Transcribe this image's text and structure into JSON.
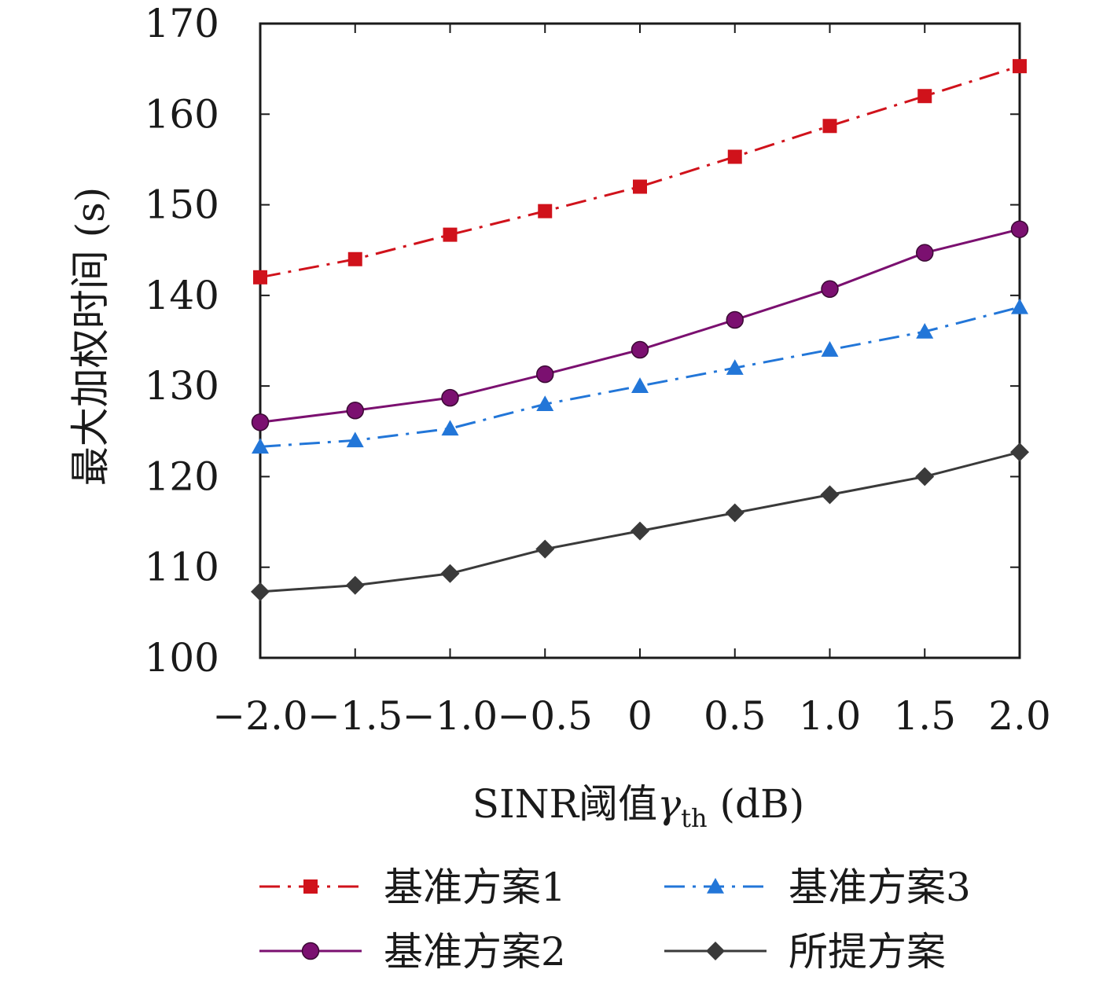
{
  "chart_data": {
    "type": "line",
    "xlabel_prefix": "SINR阈值",
    "xlabel_symbol": "γ",
    "xlabel_subscript": "th",
    "xlabel_unit": " (dB)",
    "ylabel": "最大加权时间 (s)",
    "x": [
      -2.0,
      -1.5,
      -1.0,
      -0.5,
      0,
      0.5,
      1.0,
      1.5,
      2.0
    ],
    "x_tick_labels": [
      "−2.0",
      "−1.5",
      "−1.0",
      "−0.5",
      "0",
      "0.5",
      "1.0",
      "1.5",
      "2.0"
    ],
    "xlim": [
      -2.0,
      2.0
    ],
    "ylim": [
      100,
      170
    ],
    "y_ticks": [
      100,
      110,
      120,
      130,
      140,
      150,
      160,
      170
    ],
    "grid": false,
    "legend_position": "bottom",
    "series": [
      {
        "name": "基准方案1",
        "color": "#d0121b",
        "dash": "dashdot",
        "marker": "square",
        "values": [
          142.0,
          144.0,
          146.7,
          149.3,
          152.0,
          155.3,
          158.7,
          162.0,
          165.3
        ]
      },
      {
        "name": "基准方案2",
        "color": "#7b1070",
        "dash": "solid",
        "marker": "circle",
        "values": [
          126.0,
          127.3,
          128.7,
          131.3,
          134.0,
          137.3,
          140.7,
          144.7,
          147.3
        ]
      },
      {
        "name": "基准方案3",
        "color": "#2276d8",
        "dash": "dashdot",
        "marker": "triangle",
        "values": [
          123.3,
          124.0,
          125.3,
          128.0,
          130.0,
          132.0,
          134.0,
          136.0,
          138.7
        ]
      },
      {
        "name": "所提方案",
        "color": "#3a3a3a",
        "dash": "solid",
        "marker": "diamond",
        "values": [
          107.3,
          108.0,
          109.3,
          112.0,
          114.0,
          116.0,
          118.0,
          120.0,
          122.7
        ]
      }
    ]
  }
}
